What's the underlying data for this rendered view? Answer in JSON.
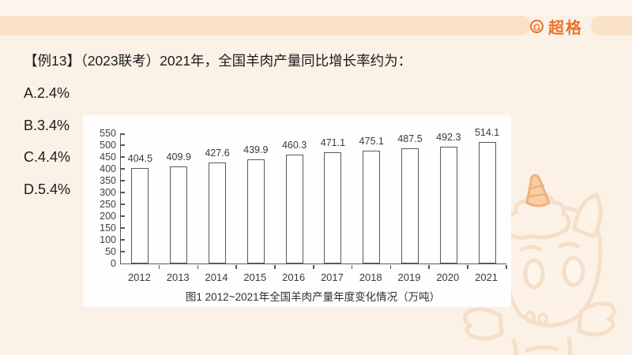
{
  "brand": {
    "name": "超格",
    "icon_letter": "G",
    "accent_color": "#ee7228"
  },
  "question": {
    "title": "【例13】（2023联考）2021年，全国羊肉产量同比增长率约为：",
    "options": [
      "A.2.4%",
      "B.3.4%",
      "C.4.4%",
      "D.5.4%"
    ]
  },
  "chart_data": {
    "type": "bar",
    "title": "图1 2012~2021年全国羊肉产量年度变化情况（万吨）",
    "categories": [
      "2012",
      "2013",
      "2014",
      "2015",
      "2016",
      "2017",
      "2018",
      "2019",
      "2020",
      "2021"
    ],
    "values": [
      404.5,
      409.9,
      427.6,
      439.9,
      460.3,
      471.1,
      475.1,
      487.5,
      492.3,
      514.1
    ],
    "unit": "万吨",
    "ylim": [
      0,
      550
    ],
    "ytick_step": 50,
    "grid": false,
    "legend_position": "none",
    "value_labels": true,
    "bar_fill": "#ffffff",
    "bar_stroke": "#595959"
  },
  "colors": {
    "background": "#fbf1e6",
    "top_band": "#f9e2c7",
    "accent": "#ee7228",
    "axis": "#595959",
    "text": "#1c1c1c",
    "panel": "#fffefd"
  }
}
